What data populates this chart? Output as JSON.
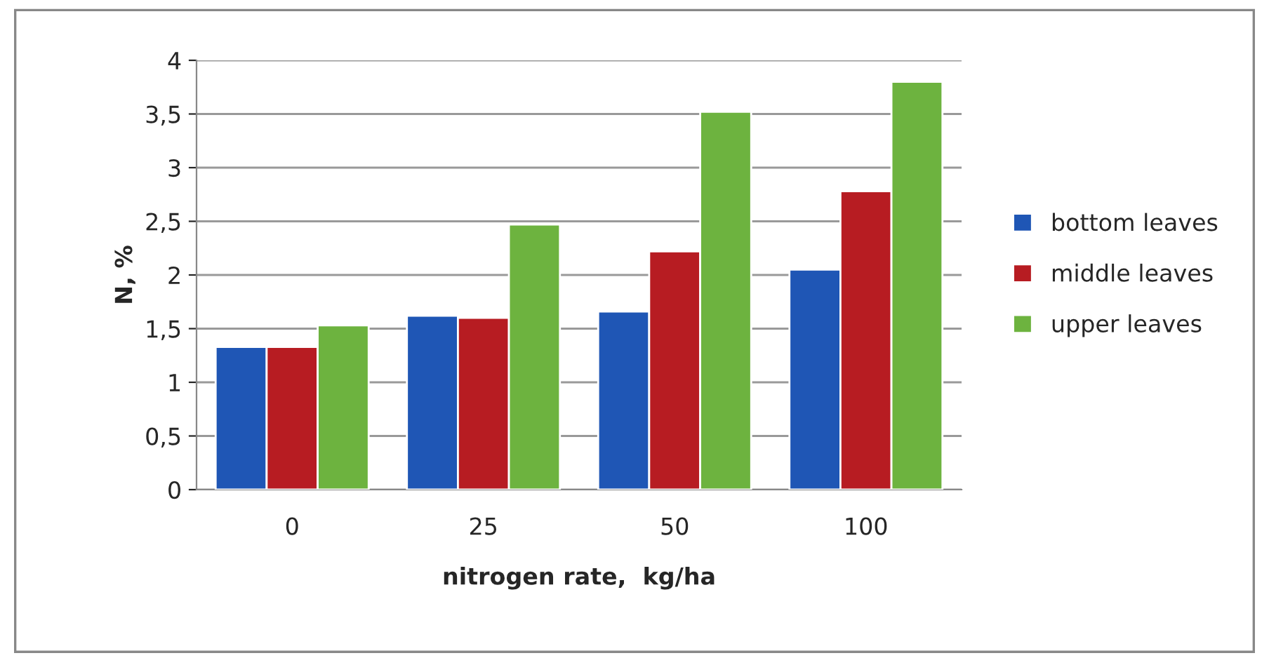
{
  "chart_data": {
    "type": "bar",
    "xlabel": "nitrogen rate,  kg/ha",
    "ylabel": "N, %",
    "categories": [
      "0",
      "25",
      "50",
      "100"
    ],
    "series": [
      {
        "name": "bottom leaves",
        "color": "#1f56b5",
        "values": [
          1.33,
          1.62,
          1.66,
          2.05
        ]
      },
      {
        "name": "middle leaves",
        "color": "#b71c22",
        "values": [
          1.33,
          1.6,
          2.22,
          2.78
        ]
      },
      {
        "name": "upper leaves",
        "color": "#6db33f",
        "values": [
          1.53,
          2.47,
          3.52,
          3.8
        ]
      }
    ],
    "ylim": [
      0,
      4
    ],
    "yticks": [
      0,
      {
        "value": 0.5,
        "label": "0,5"
      },
      1,
      {
        "value": 1.5,
        "label": "1,5"
      },
      2,
      {
        "value": 2.5,
        "label": "2,5"
      },
      3,
      {
        "value": 3.5,
        "label": "3,5"
      },
      4
    ],
    "grid": "y",
    "legend": "right"
  }
}
